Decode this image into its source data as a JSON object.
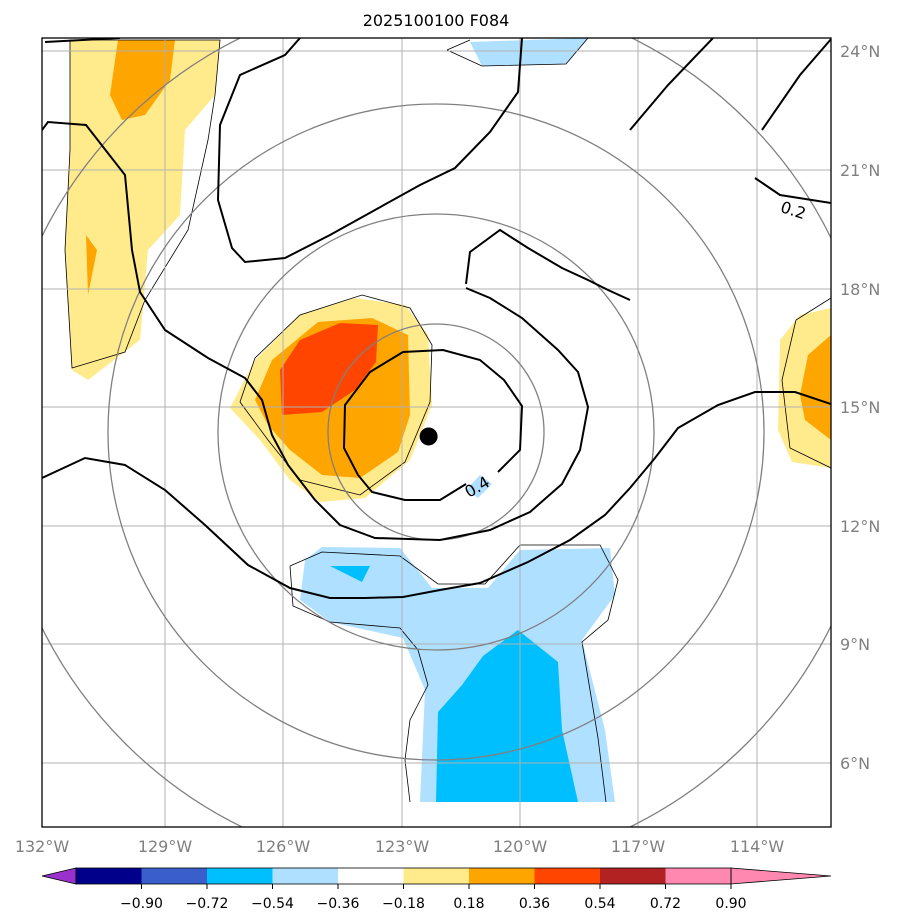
{
  "title": "2025100100 F084",
  "map": {
    "lon_range": [
      -132,
      -112
    ],
    "lat_range": [
      4.5,
      24.5
    ],
    "lon_ticks": [
      {
        "value": -132,
        "label": "132°W"
      },
      {
        "value": -129,
        "label": "129°W"
      },
      {
        "value": -126,
        "label": "126°W"
      },
      {
        "value": -123,
        "label": "123°W"
      },
      {
        "value": -120,
        "label": "120°W"
      },
      {
        "value": -117,
        "label": "117°W"
      },
      {
        "value": -114,
        "label": "114°W"
      }
    ],
    "lat_ticks": [
      {
        "value": 24,
        "label": "24°N"
      },
      {
        "value": 21,
        "label": "21°N"
      },
      {
        "value": 18,
        "label": "18°N"
      },
      {
        "value": 15,
        "label": "15°N"
      },
      {
        "value": 12,
        "label": "12°N"
      },
      {
        "value": 9,
        "label": "9°N"
      },
      {
        "value": 6,
        "label": "6°N"
      }
    ],
    "storm_center": {
      "lon": -122.2,
      "lat": 14.4
    },
    "contour_labels": [
      {
        "text": "0.2",
        "lon": -113.0,
        "lat": 20.0,
        "rotate": 18
      },
      {
        "text": "0.4",
        "lon": -120.9,
        "lat": 13.0,
        "rotate": -30
      }
    ]
  },
  "colorbar": {
    "colors": [
      "#9932cc",
      "#00008b",
      "#3a5fcd",
      "#00bfff",
      "#b0e0ff",
      "#ffffff",
      "#ffeb8c",
      "#ffa500",
      "#ff4500",
      "#b22222",
      "#ff88b0"
    ],
    "labels": [
      "−0.90",
      "−0.72",
      "−0.54",
      "−0.36",
      "−0.18",
      "0.18",
      "0.36",
      "0.54",
      "0.72",
      "0.90"
    ],
    "extend": "both"
  }
}
